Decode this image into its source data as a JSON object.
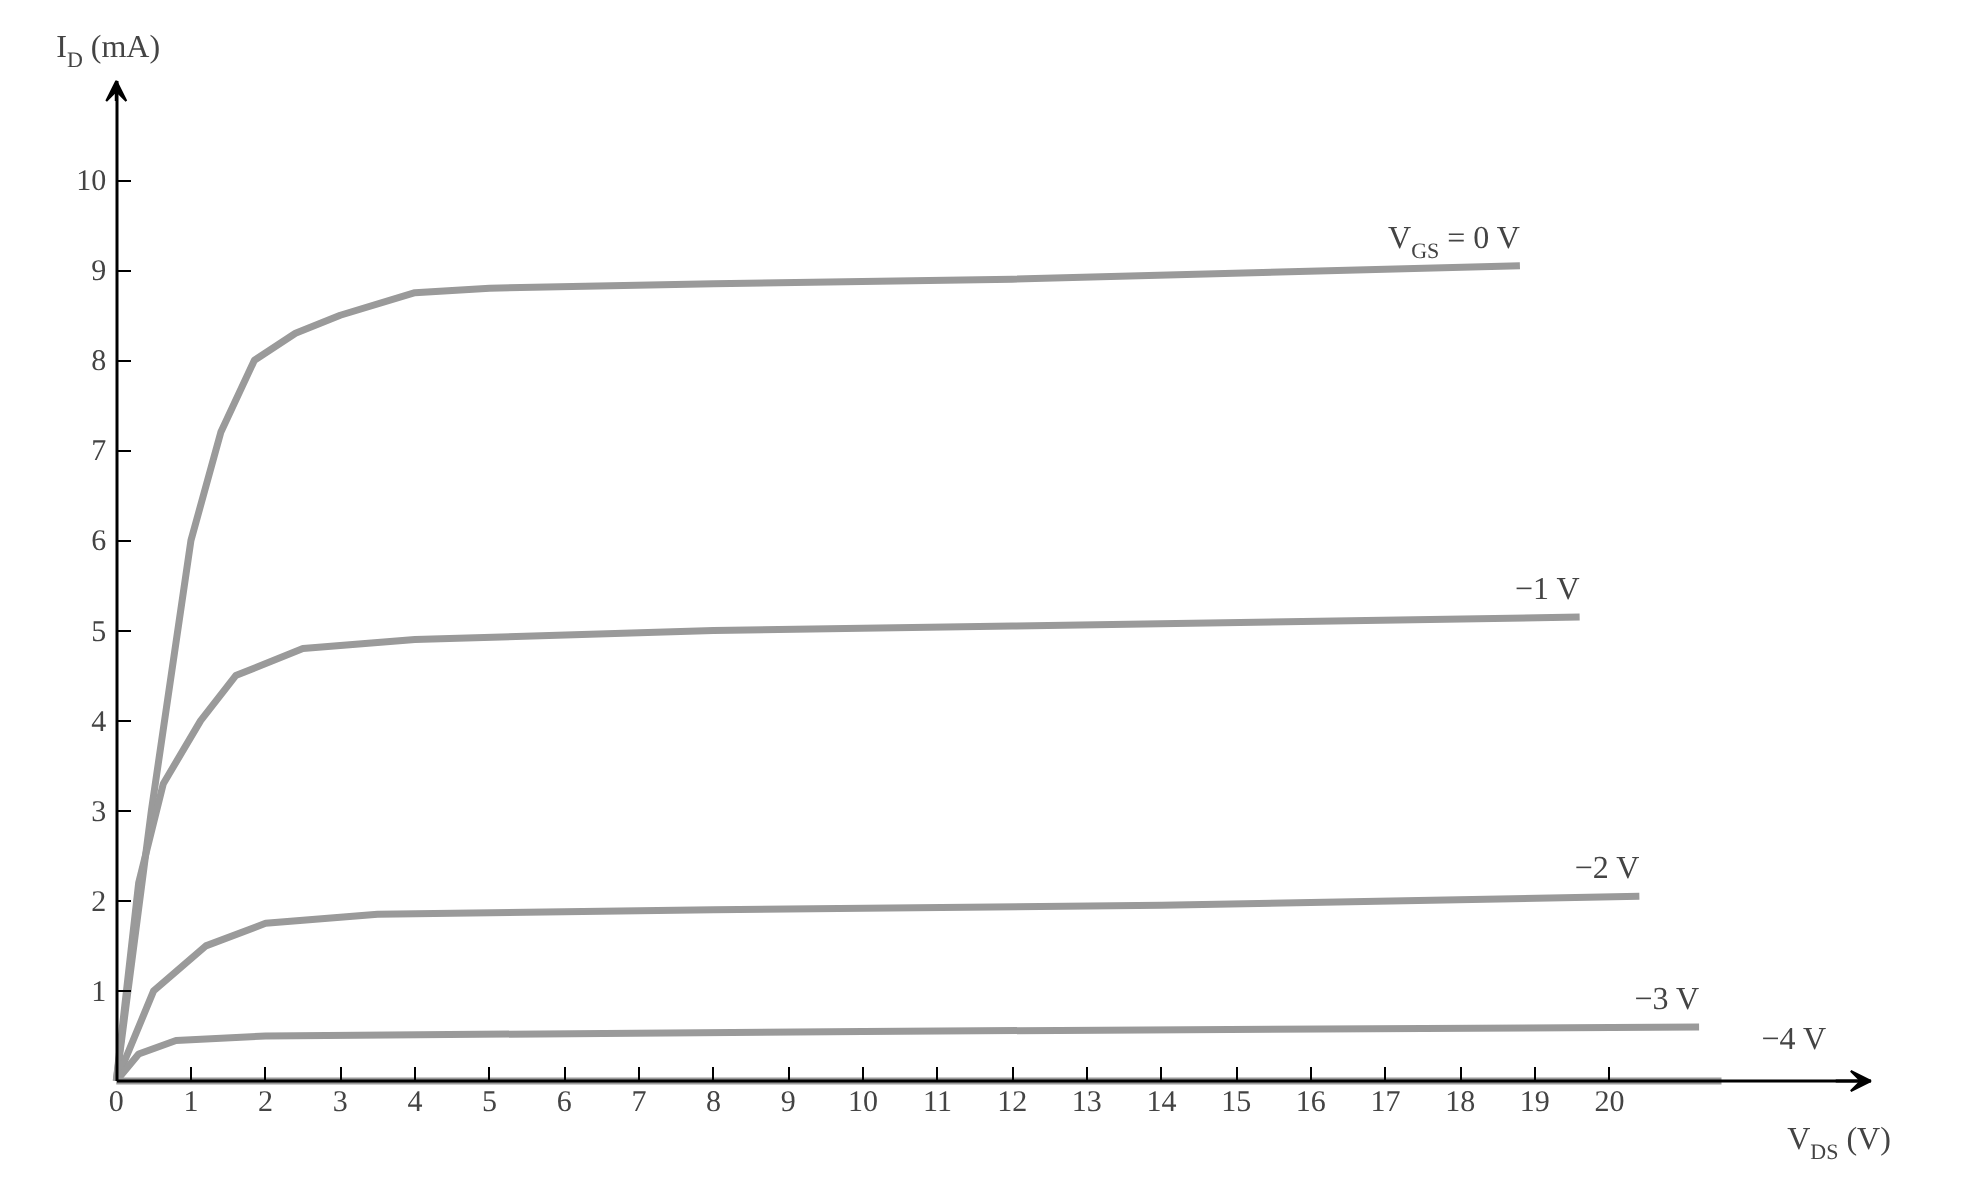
{
  "chart_data": {
    "type": "line",
    "xlabel": "V$_{DS}$ (V)",
    "ylabel": "I$_{D}$ (mA)",
    "xlim": [
      0,
      23.5
    ],
    "ylim": [
      0,
      11.1
    ],
    "xticks": [
      0,
      1,
      2,
      3,
      4,
      5,
      6,
      7,
      8,
      9,
      10,
      11,
      12,
      13,
      14,
      15,
      16,
      17,
      18,
      19,
      20
    ],
    "yticks": [
      {
        "value": 0,
        "label": null
      },
      1,
      2,
      3,
      4,
      5,
      6,
      7,
      8,
      9,
      10
    ],
    "grid": false,
    "legend": false,
    "marker": "none",
    "line_style": "solid",
    "series": [
      {
        "name": "V$_{GS}$ = 0 V",
        "color": "#9a9a9a",
        "x": [
          0,
          0.47,
          1.0,
          1.4,
          1.85,
          2.4,
          3.0,
          4.0,
          5.0,
          8,
          12,
          18.8
        ],
        "values": [
          0,
          3,
          6,
          7.2,
          8,
          8.3,
          8.5,
          8.75,
          8.8,
          8.85,
          8.9,
          9.05
        ]
      },
      {
        "name": "−1 V",
        "color": "#9a9a9a",
        "x": [
          0,
          0.3,
          0.63,
          1.13,
          1.6,
          2.5,
          4,
          8,
          12,
          19.6
        ],
        "values": [
          0,
          2.2,
          3.3,
          4,
          4.5,
          4.8,
          4.9,
          5.0,
          5.05,
          5.15
        ]
      },
      {
        "name": "−2 V",
        "color": "#9a9a9a",
        "x": [
          0,
          0.5,
          1.2,
          2,
          3.5,
          8,
          14,
          20.4
        ],
        "values": [
          0,
          1.0,
          1.5,
          1.75,
          1.85,
          1.9,
          1.95,
          2.05
        ]
      },
      {
        "name": "−3 V",
        "color": "#9a9a9a",
        "x": [
          0,
          0.3,
          0.8,
          2,
          10,
          21.2
        ],
        "values": [
          0,
          0.3,
          0.45,
          0.5,
          0.55,
          0.6
        ]
      },
      {
        "name": "−4 V",
        "color": "#9a9a9a",
        "x": [
          0,
          21.5
        ],
        "values": [
          0,
          0
        ]
      }
    ]
  }
}
